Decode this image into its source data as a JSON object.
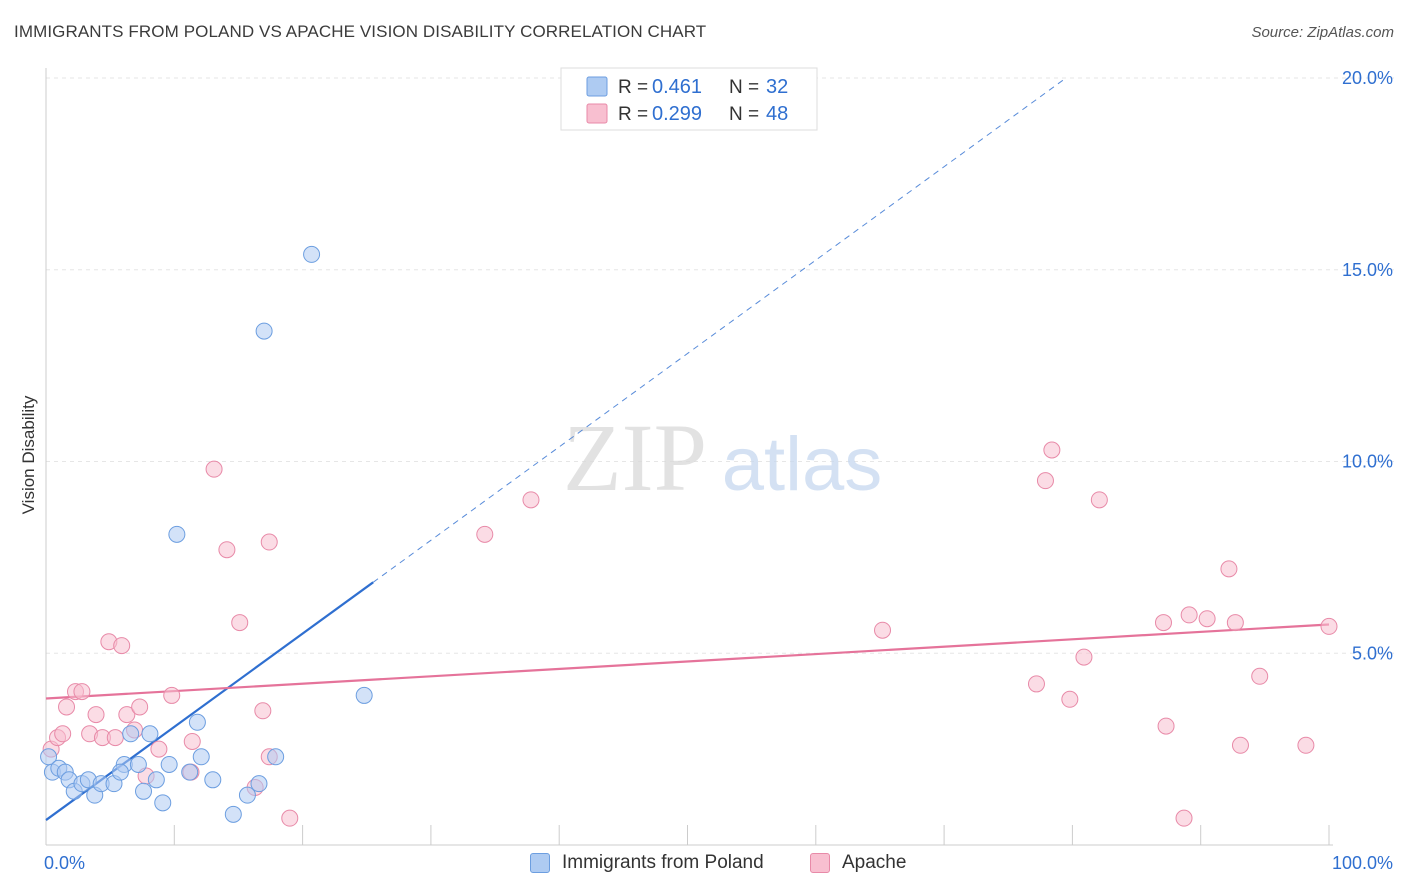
{
  "header": {
    "title": "IMMIGRANTS FROM POLAND VS APACHE VISION DISABILITY CORRELATION CHART",
    "source": "Source: ZipAtlas.com"
  },
  "watermark": {
    "part1": "ZIP",
    "part2": "atlas"
  },
  "legend_top": {
    "r_label": "R =",
    "n_label": "N =",
    "rows": [
      {
        "r": "0.461",
        "n": "32"
      },
      {
        "r": "0.299",
        "n": "48"
      }
    ]
  },
  "chart_data": {
    "type": "scatter",
    "title": "IMMIGRANTS FROM POLAND VS APACHE VISION DISABILITY CORRELATION CHART",
    "xlabel": "",
    "ylabel": "Vision Disability",
    "xlim": [
      0,
      100
    ],
    "ylim": [
      0,
      20
    ],
    "x_tick_labels": [
      "0.0%",
      "100.0%"
    ],
    "y_ticks": [
      5,
      10,
      15,
      20
    ],
    "y_tick_labels": [
      "5.0%",
      "10.0%",
      "15.0%",
      "20.0%"
    ],
    "grid": true,
    "legend_position": "top-center",
    "colors": {
      "poland_fill": "#aecbf2",
      "poland_stroke": "#6c9ee0",
      "poland_line": "#2f6fd0",
      "apache_fill": "#f8bfd0",
      "apache_stroke": "#e88aa8",
      "apache_line": "#e5739a",
      "value_text": "#2f6fd0"
    },
    "series": [
      {
        "name": "Immigrants from Poland",
        "r": 0.461,
        "n": 32,
        "trend": {
          "x": [
            0,
            25.5
          ],
          "y": [
            0.65,
            6.85
          ],
          "dashed_extension_to": [
            79.5,
            20.0
          ]
        },
        "points": [
          [
            0.2,
            2.3
          ],
          [
            0.5,
            1.9
          ],
          [
            1.0,
            2.0
          ],
          [
            1.5,
            1.9
          ],
          [
            1.8,
            1.7
          ],
          [
            2.2,
            1.4
          ],
          [
            2.8,
            1.6
          ],
          [
            3.3,
            1.7
          ],
          [
            3.8,
            1.3
          ],
          [
            4.3,
            1.6
          ],
          [
            5.3,
            1.6
          ],
          [
            6.1,
            2.1
          ],
          [
            5.8,
            1.9
          ],
          [
            6.6,
            2.9
          ],
          [
            7.2,
            2.1
          ],
          [
            7.6,
            1.4
          ],
          [
            8.1,
            2.9
          ],
          [
            8.6,
            1.7
          ],
          [
            9.1,
            1.1
          ],
          [
            9.6,
            2.1
          ],
          [
            10.2,
            8.1
          ],
          [
            11.2,
            1.9
          ],
          [
            11.8,
            3.2
          ],
          [
            12.1,
            2.3
          ],
          [
            13.0,
            1.7
          ],
          [
            14.6,
            0.8
          ],
          [
            15.7,
            1.3
          ],
          [
            16.6,
            1.6
          ],
          [
            17.0,
            13.4
          ],
          [
            17.9,
            2.3
          ],
          [
            20.7,
            15.4
          ],
          [
            24.8,
            3.9
          ]
        ]
      },
      {
        "name": "Apache",
        "r": 0.299,
        "n": 48,
        "trend": {
          "x": [
            0,
            100
          ],
          "y": [
            3.82,
            5.75
          ]
        },
        "points": [
          [
            0.4,
            2.5
          ],
          [
            0.9,
            2.8
          ],
          [
            1.3,
            2.9
          ],
          [
            1.6,
            3.6
          ],
          [
            2.3,
            4.0
          ],
          [
            2.8,
            4.0
          ],
          [
            3.4,
            2.9
          ],
          [
            3.9,
            3.4
          ],
          [
            4.4,
            2.8
          ],
          [
            4.9,
            5.3
          ],
          [
            5.4,
            2.8
          ],
          [
            5.9,
            5.2
          ],
          [
            6.3,
            3.4
          ],
          [
            6.9,
            3.0
          ],
          [
            7.3,
            3.6
          ],
          [
            7.8,
            1.8
          ],
          [
            8.8,
            2.5
          ],
          [
            9.8,
            3.9
          ],
          [
            11.4,
            2.7
          ],
          [
            11.3,
            1.9
          ],
          [
            13.1,
            9.8
          ],
          [
            14.1,
            7.7
          ],
          [
            15.1,
            5.8
          ],
          [
            16.3,
            1.5
          ],
          [
            16.9,
            3.5
          ],
          [
            17.4,
            2.3
          ],
          [
            17.4,
            7.9
          ],
          [
            19.0,
            0.7
          ],
          [
            34.2,
            8.1
          ],
          [
            37.8,
            9.0
          ],
          [
            65.2,
            5.6
          ],
          [
            77.2,
            4.2
          ],
          [
            77.9,
            9.5
          ],
          [
            78.4,
            10.3
          ],
          [
            79.8,
            3.8
          ],
          [
            80.9,
            4.9
          ],
          [
            82.1,
            9.0
          ],
          [
            87.1,
            5.8
          ],
          [
            87.3,
            3.1
          ],
          [
            88.7,
            0.7
          ],
          [
            89.1,
            6.0
          ],
          [
            90.5,
            5.9
          ],
          [
            92.2,
            7.2
          ],
          [
            92.7,
            5.8
          ],
          [
            93.1,
            2.6
          ],
          [
            94.6,
            4.4
          ],
          [
            98.2,
            2.6
          ],
          [
            100.0,
            5.7
          ]
        ]
      }
    ]
  },
  "legend_bottom": {
    "items": [
      {
        "label": "Immigrants from Poland"
      },
      {
        "label": "Apache"
      }
    ]
  }
}
